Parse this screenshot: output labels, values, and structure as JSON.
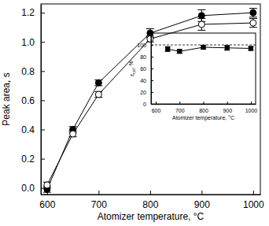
{
  "chart_data": [
    {
      "type": "line",
      "x": [
        600,
        650,
        700,
        800,
        900,
        1000
      ],
      "xlabel": "Atomizer temperature, °C",
      "ylabel": "Peak area, s",
      "xlim": [
        588,
        1014
      ],
      "ylim": [
        -0.045,
        1.26
      ],
      "xticks": [
        600,
        700,
        800,
        900,
        1000
      ],
      "yticks": [
        {
          "value": 0,
          "label": "0.0"
        },
        {
          "value": 0.2,
          "label": "0.2"
        },
        {
          "value": 0.4,
          "label": "0.4"
        },
        {
          "value": 0.6,
          "label": "0.6"
        },
        {
          "value": 0.8,
          "label": "0.8"
        },
        {
          "value": 1.0,
          "label": "1.0"
        },
        {
          "value": 1.2,
          "label": "1.2"
        }
      ],
      "series": [
        {
          "color": "#000000",
          "marker": "circle",
          "line_style": "solid",
          "values": [
            -0.01,
            0.4,
            0.72,
            1.06,
            1.18,
            1.2
          ],
          "errors": [
            0.02,
            0.02,
            0.02,
            0.03,
            0.04,
            0.03
          ]
        },
        {
          "color": "#000000",
          "marker": "circle-open",
          "line_style": "solid",
          "values": [
            0.02,
            0.37,
            0.64,
            1.02,
            1.12,
            1.13
          ],
          "errors": [
            0.02,
            0.02,
            0.02,
            0.02,
            0.04,
            0.03
          ]
        }
      ]
    },
    {
      "type": "line",
      "x": [
        650,
        700,
        800,
        900,
        1000
      ],
      "xlabel": "Atomizer temperature, °C",
      "ylabel": "εcol, %",
      "xlim": [
        580,
        1020
      ],
      "ylim": [
        0,
        120
      ],
      "xticks": [
        600,
        700,
        800,
        900,
        1000
      ],
      "yticks": [
        0,
        20,
        40,
        60,
        80,
        100
      ],
      "series": [
        {
          "color": "#000000",
          "marker": "square",
          "line_style": "solid",
          "values": [
            93,
            89,
            96,
            95,
            94
          ],
          "errors": [
            4,
            3,
            3,
            4,
            3
          ]
        }
      ],
      "reference_line": {
        "value": 100,
        "line_style": "dashed"
      }
    }
  ]
}
